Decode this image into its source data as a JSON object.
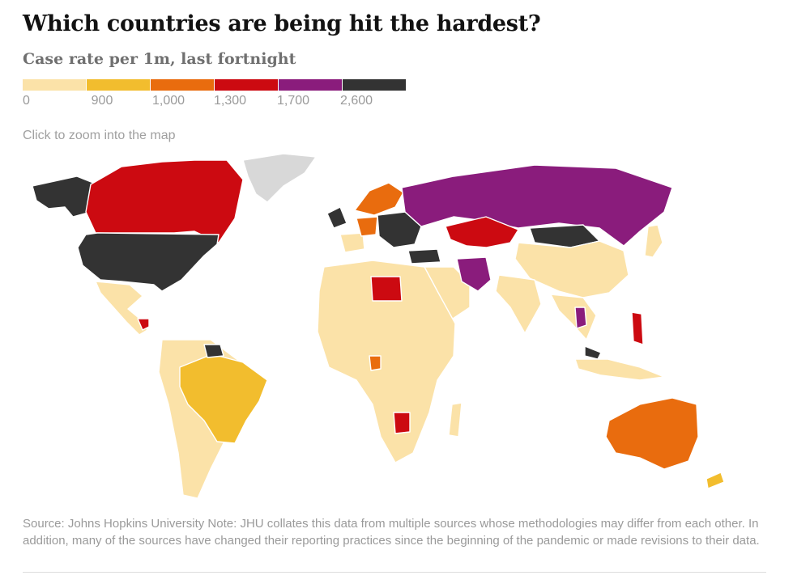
{
  "header": {
    "title": "Which countries are being hit the hardest?",
    "subtitle": "Case rate per 1m, last fortnight"
  },
  "legend": {
    "colors": [
      "#fbe2a8",
      "#f2bd2e",
      "#e96c0e",
      "#cc0a11",
      "#8a1c7c",
      "#333333"
    ],
    "ticks": [
      "0",
      "900",
      "1,000",
      "1,300",
      "1,700",
      "2,600"
    ]
  },
  "hint": "Click to zoom into the map",
  "map": {
    "no_data_color": "#d8d8d8",
    "regions": [
      {
        "name": "canada",
        "bin": 3
      },
      {
        "name": "alaska",
        "bin": 5
      },
      {
        "name": "usa",
        "bin": 5
      },
      {
        "name": "greenland",
        "bin": -1
      },
      {
        "name": "mexico-central-america",
        "bin": 0
      },
      {
        "name": "central-america-hotspot",
        "bin": 3
      },
      {
        "name": "south-america",
        "bin": 0
      },
      {
        "name": "brazil",
        "bin": 1
      },
      {
        "name": "guianas",
        "bin": 5
      },
      {
        "name": "uk-ireland",
        "bin": 5
      },
      {
        "name": "scandinavia",
        "bin": 2
      },
      {
        "name": "western-europe",
        "bin": 2
      },
      {
        "name": "central-europe",
        "bin": 5
      },
      {
        "name": "iberia",
        "bin": 0
      },
      {
        "name": "turkey",
        "bin": 5
      },
      {
        "name": "russia",
        "bin": 4
      },
      {
        "name": "kazakhstan",
        "bin": 3
      },
      {
        "name": "mongolia",
        "bin": 5
      },
      {
        "name": "iran",
        "bin": 4
      },
      {
        "name": "middle-east",
        "bin": 0
      },
      {
        "name": "china",
        "bin": 0
      },
      {
        "name": "india",
        "bin": 0
      },
      {
        "name": "africa",
        "bin": 0
      },
      {
        "name": "libya",
        "bin": 3
      },
      {
        "name": "botswana",
        "bin": 3
      },
      {
        "name": "gabon",
        "bin": 2
      },
      {
        "name": "madagascar",
        "bin": 0
      },
      {
        "name": "southeast-asia",
        "bin": 0
      },
      {
        "name": "thailand",
        "bin": 4
      },
      {
        "name": "malaysia",
        "bin": 5
      },
      {
        "name": "philippines",
        "bin": 3
      },
      {
        "name": "indonesia",
        "bin": 0
      },
      {
        "name": "japan",
        "bin": 0
      },
      {
        "name": "australia",
        "bin": 2
      },
      {
        "name": "new-zealand",
        "bin": 1
      }
    ]
  },
  "footnote": "Source: Johns Hopkins University Note: JHU collates this data from multiple sources whose methodologies may differ from each other. In addition, many of the sources have changed their reporting practices since the beginning of the pandemic or made revisions to their data."
}
